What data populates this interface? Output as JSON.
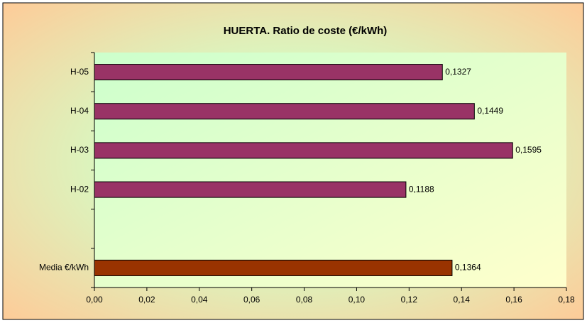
{
  "chart_data": {
    "type": "barh",
    "title": "HUERTA. Ratio de coste (€/kWh)",
    "categories": [
      "H-05",
      "H-04",
      "H-03",
      "H-02",
      null,
      "Media €/kWh"
    ],
    "values": [
      0.1327,
      0.1449,
      0.1595,
      0.1188,
      null,
      0.1364
    ],
    "value_labels": [
      "0,1327",
      "0,1449",
      "0,1595",
      "0,1188",
      null,
      "0,1364"
    ],
    "colors": [
      "#993366",
      "#993366",
      "#993366",
      "#993366",
      null,
      "#993300"
    ],
    "xlim": [
      0,
      0.18
    ],
    "xticks": [
      {
        "value": 0,
        "label": "0,00"
      },
      {
        "value": 0.02,
        "label": "0,02"
      },
      {
        "value": 0.04,
        "label": "0,04"
      },
      {
        "value": 0.06,
        "label": "0,06"
      },
      {
        "value": 0.08,
        "label": "0,08"
      },
      {
        "value": 0.1,
        "label": "0,10"
      },
      {
        "value": 0.12,
        "label": "0,12"
      },
      {
        "value": 0.14,
        "label": "0,14"
      },
      {
        "value": 0.16,
        "label": "0,16"
      },
      {
        "value": 0.18,
        "label": "0,18"
      }
    ]
  }
}
